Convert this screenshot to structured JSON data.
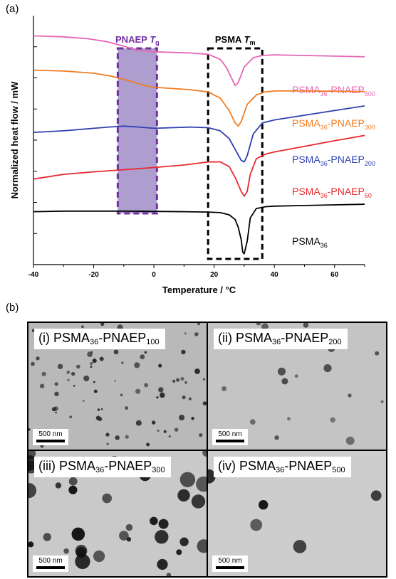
{
  "panel_a_label": "(a)",
  "panel_b_label": "(b)",
  "chart_data": {
    "type": "line",
    "title": "",
    "xlabel": "Temperature / °C",
    "ylabel": "Normalized heat flow / mW",
    "xlim": [
      -40,
      70
    ],
    "x_ticks": [
      -40,
      -20,
      0,
      20,
      40,
      60
    ],
    "y_ticks_labeled": false,
    "grid": false,
    "legend": "labels next to each curve at right",
    "annotations": [
      {
        "id": "tg",
        "base": "PNAEP ",
        "italic": "T",
        "sub": "g",
        "color": "#7030a0",
        "region_x": [
          -12,
          1
        ],
        "style": "dashed box, purple fill"
      },
      {
        "id": "tm",
        "base": "PSMA ",
        "italic": "T",
        "sub": "m",
        "color": "#000000",
        "region_x": [
          18,
          36
        ],
        "style": "dashed box"
      }
    ],
    "series": [
      {
        "name": "PSMA36-PNAEP500",
        "label_main": "PSMA",
        "label_sub1": "36",
        "label_mid": "-PNAEP",
        "label_sub2": "500",
        "color": "#e665b5",
        "x": [
          -40,
          -30,
          -22,
          -16,
          -10,
          -6,
          0,
          6,
          12,
          18,
          22,
          24,
          26,
          27,
          28,
          30,
          33,
          36,
          40,
          50,
          60,
          70
        ],
        "y": [
          7.35,
          7.32,
          7.26,
          7.17,
          7.02,
          6.9,
          6.84,
          6.82,
          6.8,
          6.76,
          6.6,
          6.35,
          5.95,
          5.75,
          5.85,
          6.35,
          6.65,
          6.72,
          6.74,
          6.72,
          6.7,
          6.68
        ]
      },
      {
        "name": "PSMA36-PNAEP300",
        "label_main": "PSMA",
        "label_sub1": "36",
        "label_mid": "-PNAEP",
        "label_sub2": "300",
        "color": "#f07c22",
        "x": [
          -40,
          -30,
          -20,
          -14,
          -8,
          -3,
          0,
          6,
          12,
          18,
          22,
          25,
          27,
          28,
          29,
          31,
          34,
          37,
          40,
          50,
          60,
          70
        ],
        "y": [
          6.25,
          6.22,
          6.15,
          6.05,
          5.9,
          5.75,
          5.7,
          5.66,
          5.62,
          5.55,
          5.35,
          4.95,
          4.55,
          4.45,
          4.6,
          5.15,
          5.45,
          5.55,
          5.58,
          5.58,
          5.57,
          5.56
        ]
      },
      {
        "name": "PSMA36-PNAEP200",
        "label_main": "PSMA",
        "label_sub1": "36",
        "label_mid": "-PNAEP",
        "label_sub2": "200",
        "color": "#2e3fb0",
        "x": [
          -40,
          -30,
          -20,
          -15,
          -10,
          -5,
          0,
          6,
          12,
          18,
          22,
          25,
          27,
          29,
          30,
          31,
          33,
          36,
          40,
          50,
          60,
          70
        ],
        "y": [
          4.25,
          4.3,
          4.38,
          4.42,
          4.45,
          4.42,
          4.38,
          4.4,
          4.42,
          4.4,
          4.3,
          4.05,
          3.7,
          3.35,
          3.3,
          3.5,
          4.2,
          4.55,
          4.65,
          4.8,
          4.95,
          5.1
        ]
      },
      {
        "name": "PSMA36-PNAEP60",
        "label_main": "PSMA",
        "label_sub1": "36",
        "label_mid": "-PNAEP",
        "label_sub2": "60",
        "color": "#e8282d",
        "x": [
          -40,
          -30,
          -20,
          -10,
          0,
          10,
          18,
          22,
          25,
          27,
          29,
          30,
          31,
          32,
          34,
          37,
          40,
          50,
          60,
          70
        ],
        "y": [
          2.75,
          2.9,
          2.98,
          3.05,
          3.12,
          3.2,
          3.3,
          3.3,
          3.15,
          2.8,
          2.35,
          2.2,
          2.35,
          2.9,
          3.4,
          3.55,
          3.62,
          3.8,
          3.98,
          4.15
        ]
      },
      {
        "name": "PSMA36",
        "label_main": "PSMA",
        "label_sub1": "36",
        "label_mid": "",
        "label_sub2": "",
        "color": "#000000",
        "x": [
          -40,
          -30,
          -20,
          -10,
          0,
          10,
          18,
          22,
          25,
          27,
          28,
          29,
          29.5,
          30,
          31,
          32,
          34,
          37,
          40,
          50,
          60,
          70
        ],
        "y": [
          1.7,
          1.72,
          1.72,
          1.72,
          1.71,
          1.7,
          1.69,
          1.67,
          1.6,
          1.45,
          1.2,
          0.8,
          0.4,
          0.35,
          0.75,
          1.5,
          1.8,
          1.86,
          1.88,
          1.9,
          1.92,
          1.94
        ]
      }
    ]
  },
  "tem_panels": [
    {
      "label_pre": "(i) PSMA",
      "sub1": "36",
      "mid": "-PNAEP",
      "sub2": "100",
      "scale": "500 nm"
    },
    {
      "label_pre": "(ii) PSMA",
      "sub1": "36",
      "mid": "-PNAEP",
      "sub2": "200",
      "scale": "500 nm"
    },
    {
      "label_pre": "(iii) PSMA",
      "sub1": "36",
      "mid": "-PNAEP",
      "sub2": "300",
      "scale": "500 nm"
    },
    {
      "label_pre": "(iv) PSMA",
      "sub1": "36",
      "mid": "-PNAEP",
      "sub2": "500",
      "scale": "500 nm"
    }
  ]
}
